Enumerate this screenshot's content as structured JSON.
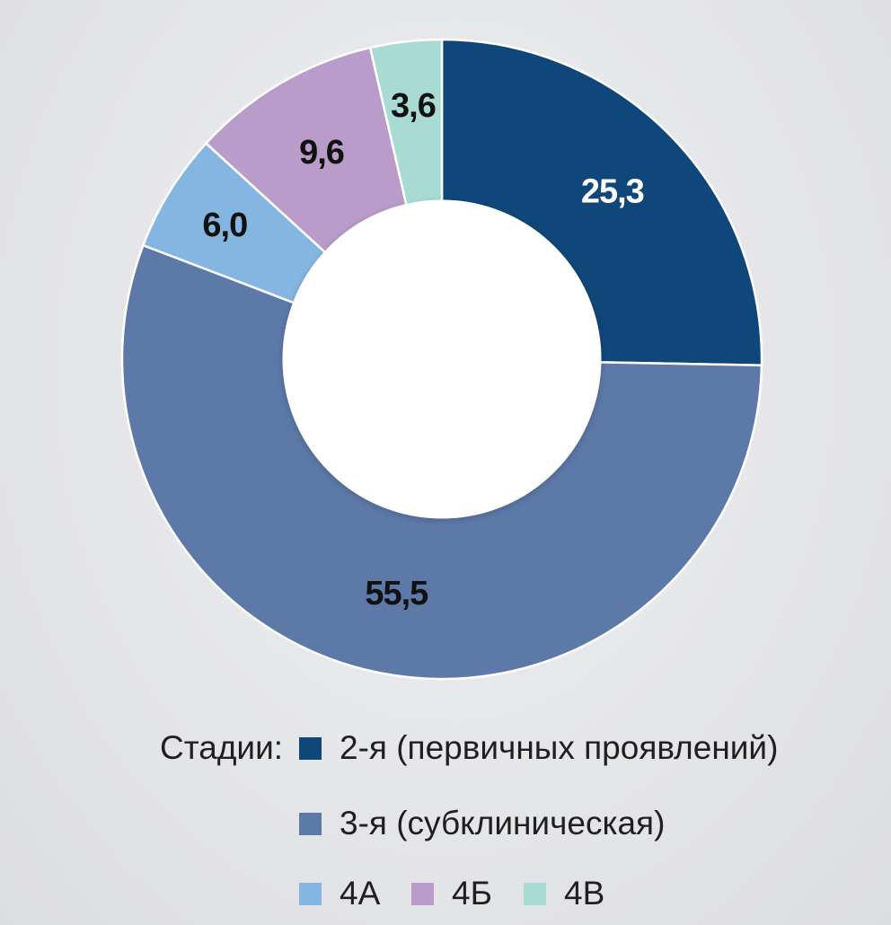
{
  "chart_data": {
    "type": "pie",
    "categories": [
      "2-я (первичных проявлений)",
      "3-я (субклиническая)",
      "4А",
      "4Б",
      "4В"
    ],
    "values": [
      25.3,
      55.5,
      6.0,
      9.6,
      3.6
    ],
    "value_labels": [
      "25,3",
      "55,5",
      "6,0",
      "9,6",
      "3,6"
    ],
    "colors": [
      "#0f477a",
      "#5d79a8",
      "#85b6e2",
      "#b99cc9",
      "#a8dcd3"
    ],
    "label_colors": [
      "#ffffff",
      "#111111",
      "#111111",
      "#111111",
      "#111111"
    ],
    "donut": true,
    "legend_title": "Стадии:",
    "legend_placement": "bottom"
  }
}
